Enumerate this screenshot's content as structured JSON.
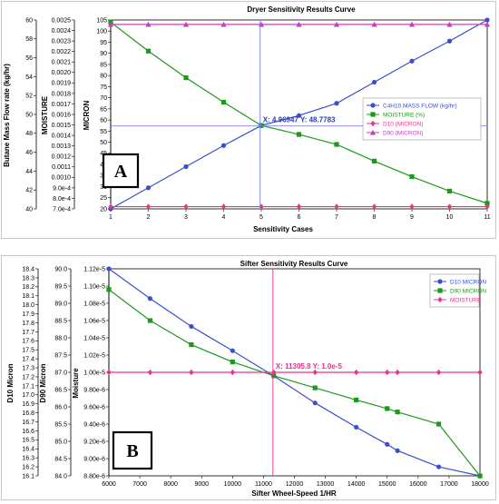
{
  "colors": {
    "blue": "#3a4fd0",
    "green": "#1a9a1a",
    "red": "#e8348a",
    "magenta": "#c040c0",
    "crosshair_a": "#8080f0",
    "crosshair_b": "#e8348a"
  },
  "chart_data": [
    {
      "type": "line",
      "title": "Dryer Sensitivity Results Curve",
      "xlabel": "Sensitivity Cases",
      "ylabels": [
        "Butane Mass Flow rate (kg/hr)",
        "MOISTURE",
        "MICRON"
      ],
      "badge": "A",
      "x": [
        1,
        2,
        3,
        4,
        5,
        6,
        7,
        8,
        9,
        10,
        11
      ],
      "xlim": [
        1,
        11
      ],
      "x_ticks": [
        "1",
        "2",
        "3",
        "4",
        "5",
        "6",
        "7",
        "8",
        "9",
        "10",
        "11"
      ],
      "axis_left1": {
        "ylim": [
          40,
          60
        ],
        "ticks": [
          "40",
          "42",
          "44",
          "46",
          "48",
          "50",
          "52",
          "54",
          "56",
          "58",
          "60"
        ]
      },
      "axis_left2": {
        "ylim": [
          0.0007,
          0.0025
        ],
        "ticks": [
          "7.0e-4",
          "8.0e-4",
          "9.0e-4",
          "0.0010",
          "0.0011",
          "0.0012",
          "0.0013",
          "0.0014",
          "0.0015",
          "0.0016",
          "0.0017",
          "0.0018",
          "0.0019",
          "0.0020",
          "0.0021",
          "0.0022",
          "0.0023",
          "0.0024",
          "0.0025"
        ]
      },
      "axis_left3": {
        "ylim": [
          20,
          105
        ],
        "ticks": [
          "20",
          "25",
          "30",
          "35",
          "40",
          "45",
          "50",
          "55",
          "60",
          "65",
          "70",
          "75",
          "80",
          "85",
          "90",
          "95",
          "100",
          "105"
        ]
      },
      "series": [
        {
          "name": "C4H10 MASS FLOW  (kg/hr)",
          "color": "blue",
          "marker": "circle",
          "values": [
            20,
            29.5,
            39,
            48.5,
            57.5,
            62,
            67.5,
            77,
            86.5,
            95.5,
            105
          ]
        },
        {
          "name": "MOISTURE  (%)",
          "color": "green",
          "marker": "square",
          "values": [
            104,
            91,
            79,
            68,
            57.5,
            53.5,
            49,
            41.5,
            34.5,
            28,
            22.5
          ]
        },
        {
          "name": "D10  (MICRON)",
          "color": "red",
          "marker": "diamond",
          "values": [
            21,
            21,
            21,
            21,
            21,
            21,
            21,
            21,
            21,
            21,
            21
          ]
        },
        {
          "name": "D90  (MICRON)",
          "color": "magenta",
          "marker": "triangle",
          "values": [
            103,
            103,
            103,
            103,
            103,
            103,
            103,
            103,
            103,
            103,
            103
          ]
        }
      ],
      "crosshair": {
        "x": 4.96947,
        "y": 48.7783,
        "label": "X: 4.96947  Y: 48.7783"
      },
      "legend_position": "right"
    },
    {
      "type": "line",
      "title": "Sifter Sensitivity Results Curve",
      "xlabel": "Sifter Wheel-Speed 1/HR",
      "ylabels": [
        "D10 Micron",
        "D90 Micron",
        "Moisture"
      ],
      "badge": "B",
      "x": [
        6000,
        7333,
        8667,
        10000,
        11333,
        12667,
        14000,
        15000,
        15333,
        16667,
        18000
      ],
      "xlim": [
        6000,
        18000
      ],
      "x_ticks": [
        "6000",
        "7000",
        "8000",
        "9000",
        "10000",
        "11000",
        "12000",
        "13000",
        "14000",
        "15000",
        "16000",
        "17000",
        "18000"
      ],
      "axis_left1": {
        "ylim": [
          16.1,
          18.4
        ],
        "ticks": [
          "16.1",
          "16.2",
          "16.3",
          "16.4",
          "16.5",
          "16.6",
          "16.7",
          "16.8",
          "16.9",
          "17.0",
          "17.1",
          "17.2",
          "17.3",
          "17.4",
          "17.5",
          "17.6",
          "17.7",
          "17.8",
          "17.9",
          "18.0",
          "18.1",
          "18.2",
          "18.3",
          "18.4"
        ]
      },
      "axis_left2": {
        "ylim": [
          84.0,
          90.0
        ],
        "ticks": [
          "84.0",
          "84.5",
          "85.0",
          "85.5",
          "86.0",
          "86.5",
          "87.0",
          "87.5",
          "88.0",
          "88.5",
          "89.0",
          "89.5",
          "90.0"
        ]
      },
      "axis_left3": {
        "ylim": [
          8.8e-06,
          1.12e-05
        ],
        "ticks": [
          "8.80e-6",
          "9.00e-6",
          "9.20e-6",
          "9.40e-6",
          "9.60e-6",
          "9.80e-6",
          "1.00e-5",
          "1.02e-5",
          "1.04e-5",
          "1.06e-5",
          "1.08e-5",
          "1.10e-5",
          "1.12e-5"
        ]
      },
      "series": [
        {
          "name": "D10 MICRON",
          "color": "blue",
          "marker": "circle",
          "values": [
            18.4,
            18.07,
            17.76,
            17.49,
            17.21,
            16.91,
            16.64,
            16.45,
            16.38,
            16.2,
            16.1
          ]
        },
        {
          "name": "D90 MICRON",
          "color": "green",
          "marker": "square",
          "values": [
            89.4,
            88.5,
            87.8,
            87.3,
            86.9,
            86.55,
            86.2,
            85.95,
            85.85,
            85.5,
            84.0
          ]
        },
        {
          "name": "MOISTURE",
          "color": "red",
          "marker": "diamond",
          "values": [
            1e-05,
            1e-05,
            1e-05,
            1e-05,
            1e-05,
            1e-05,
            1e-05,
            1e-05,
            1e-05,
            1e-05,
            1e-05
          ]
        }
      ],
      "crosshair": {
        "x": 11305.8,
        "y": 1e-05,
        "label": "X: 11305.8  Y: 1.0e-5"
      },
      "legend_position": "top-right"
    }
  ]
}
